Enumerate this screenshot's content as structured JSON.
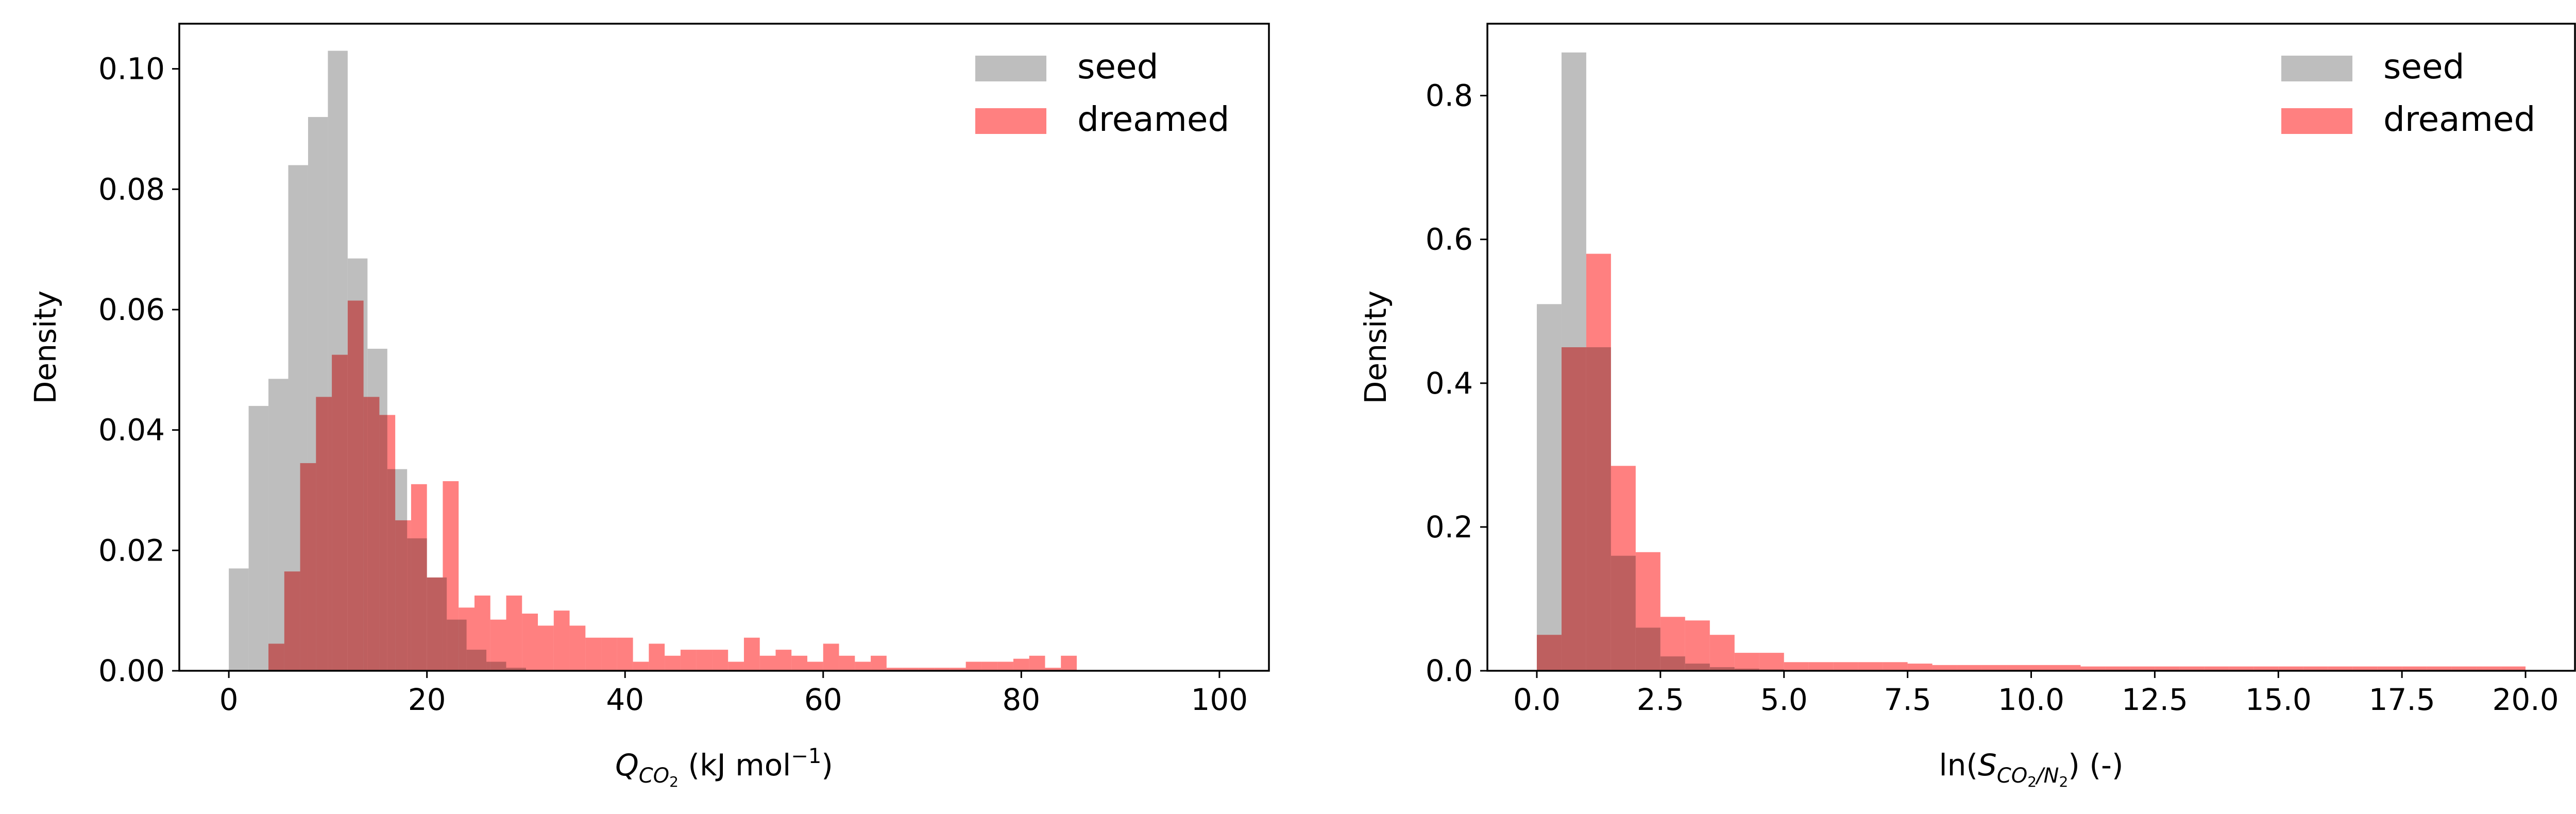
{
  "figure": {
    "background": "#ffffff"
  },
  "chart_data": [
    {
      "type": "histogram",
      "xlabel": {
        "main": "Q",
        "sub": "CO",
        "subsub": "2",
        "suffix": " (kJ mol",
        "sup": "−1",
        "end": ")"
      },
      "ylabel": "Density",
      "xlim": [
        -5,
        105
      ],
      "ylim": [
        0,
        0.1075
      ],
      "xticks": [
        0,
        20,
        40,
        60,
        80,
        100
      ],
      "xtick_labels": [
        "0",
        "20",
        "40",
        "60",
        "80",
        "100"
      ],
      "yticks": [
        0,
        0.02,
        0.04,
        0.06,
        0.08,
        0.1
      ],
      "ytick_labels": [
        "0.00",
        "0.02",
        "0.04",
        "0.06",
        "0.08",
        "0.10"
      ],
      "legend_position": "top-right",
      "series": [
        {
          "name": "seed",
          "color": "#bebebe",
          "bin_start": 0,
          "bin_width": 2,
          "values": [
            0.017,
            0.044,
            0.0485,
            0.084,
            0.092,
            0.103,
            0.0685,
            0.0535,
            0.0335,
            0.022,
            0.0155,
            0.0085,
            0.0035,
            0.0015,
            0.0005
          ]
        },
        {
          "name": "dreamed",
          "color": "#ff8080",
          "bin_start": 4,
          "bin_width": 1.6,
          "values": [
            0.0045,
            0.0165,
            0.0345,
            0.0455,
            0.0525,
            0.0615,
            0.0455,
            0.0425,
            0.025,
            0.031,
            0.0155,
            0.0315,
            0.0105,
            0.0125,
            0.0085,
            0.0125,
            0.0095,
            0.0075,
            0.01,
            0.0075,
            0.0055,
            0.0055,
            0.0055,
            0.0015,
            0.0045,
            0.0025,
            0.0035,
            0.0035,
            0.0035,
            0.0015,
            0.0055,
            0.0025,
            0.0035,
            0.0025,
            0.0015,
            0.0045,
            0.0025,
            0.0015,
            0.0025,
            0.0005,
            0.0005,
            0.0005,
            0.0005,
            0.0005,
            0.0015,
            0.0015,
            0.0015,
            0.002,
            0.0025,
            0.0005,
            0.0025
          ]
        }
      ]
    },
    {
      "type": "histogram",
      "xlabel": {
        "main": "ln(S",
        "sub": "CO",
        "subsub": "2",
        "mid": "/N",
        "subsub2": "2",
        "suffix": ") (-)"
      },
      "ylabel": "Density",
      "xlim": [
        -1,
        21
      ],
      "ylim": [
        0,
        0.9
      ],
      "xticks": [
        0,
        2.5,
        5,
        7.5,
        10,
        12.5,
        15,
        17.5,
        20
      ],
      "xtick_labels": [
        "0.0",
        "2.5",
        "5.0",
        "7.5",
        "10.0",
        "12.5",
        "15.0",
        "17.5",
        "20.0"
      ],
      "yticks": [
        0,
        0.2,
        0.4,
        0.6,
        0.8
      ],
      "ytick_labels": [
        "0.0",
        "0.2",
        "0.4",
        "0.6",
        "0.8"
      ],
      "legend_position": "top-right",
      "series": [
        {
          "name": "seed",
          "color": "#bebebe",
          "bin_start": 0,
          "bin_width": 0.5,
          "values": [
            0.51,
            0.86,
            0.45,
            0.16,
            0.06,
            0.02,
            0.01,
            0.005,
            0.003,
            0.002,
            0.001
          ]
        },
        {
          "name": "dreamed",
          "color": "#ff8080",
          "bin_start": 0,
          "bin_width": 0.5,
          "values": [
            0.05,
            0.45,
            0.58,
            0.285,
            0.165,
            0.075,
            0.07,
            0.05,
            0.025,
            0.025,
            0.012,
            0.012,
            0.012,
            0.012,
            0.012,
            0.01,
            0.008,
            0.008,
            0.008,
            0.008,
            0.008,
            0.008,
            0.006,
            0.006,
            0.006,
            0.006,
            0.006,
            0.006,
            0.006,
            0.006,
            0.006,
            0.006,
            0.006,
            0.006,
            0.006,
            0.006,
            0.006,
            0.006,
            0.006,
            0.006
          ]
        }
      ]
    }
  ]
}
